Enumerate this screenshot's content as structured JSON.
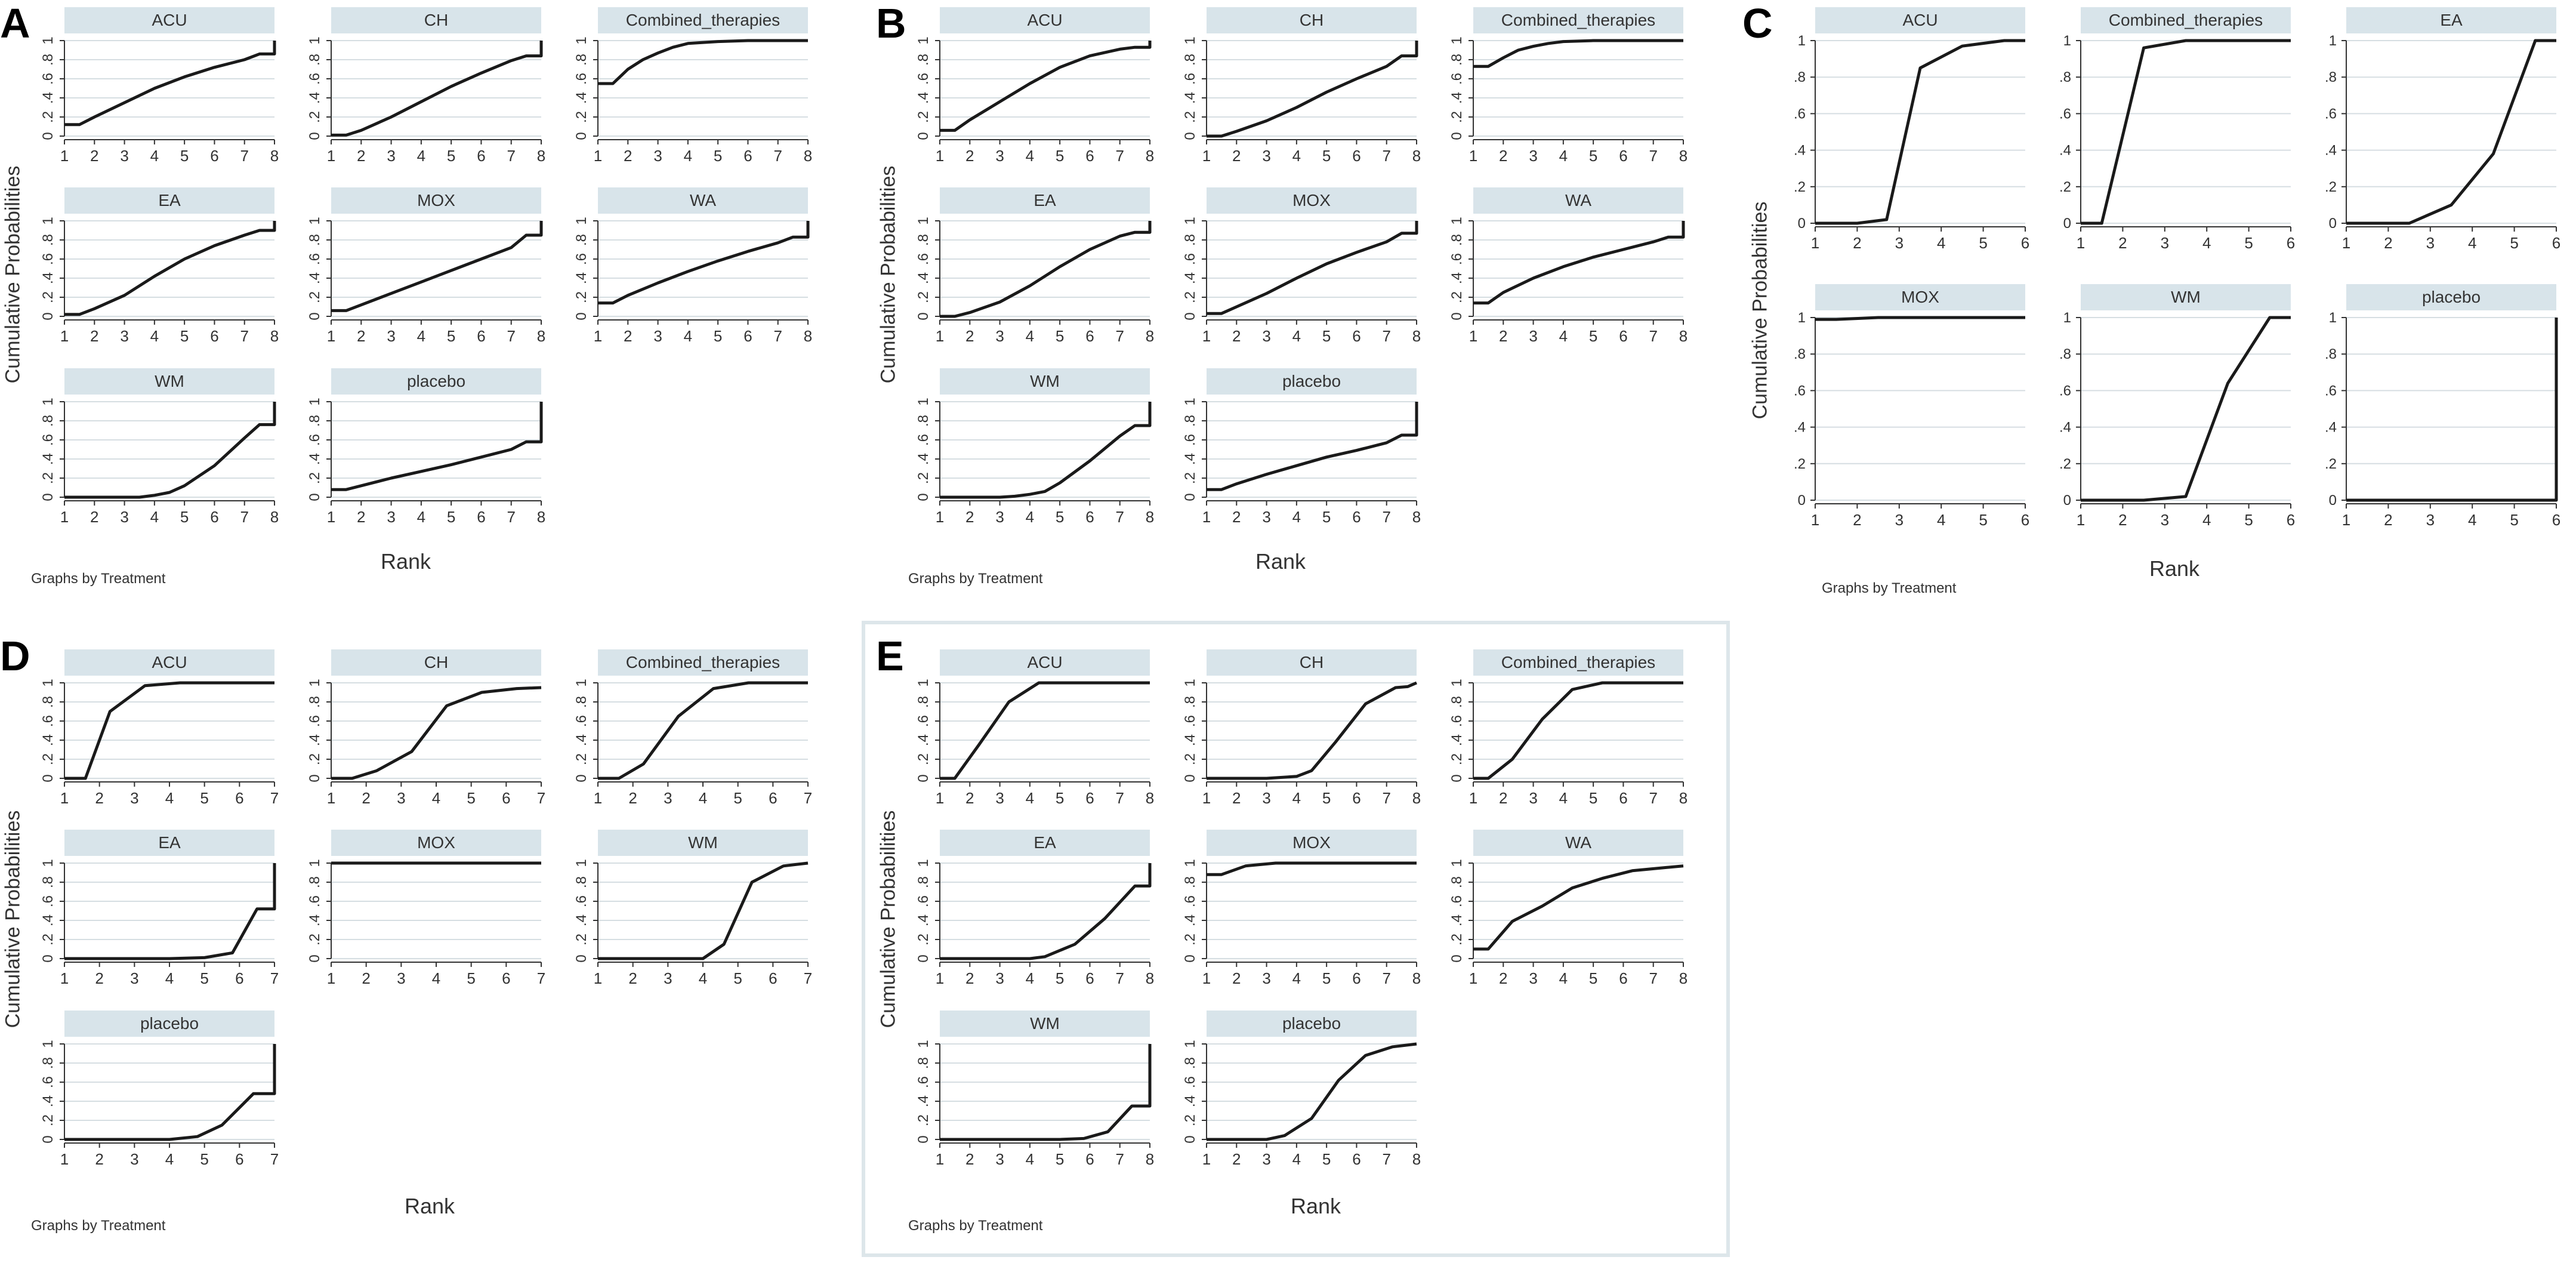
{
  "colors": {
    "strip": "#d8e4ea",
    "grid": "#d6dee2",
    "line": "#1a1a1a",
    "text": "#333333",
    "frame": "#dde6ea"
  },
  "chart_data": [
    {
      "panel": "A",
      "type": "line",
      "ylabel": "Cumulative Probabilities",
      "xlabel": "Rank",
      "note": "Graphs by Treatment",
      "xlim": [
        1,
        8
      ],
      "ylim": [
        0,
        1
      ],
      "xticks": [
        "1",
        "2",
        "3",
        "4",
        "5",
        "6",
        "7",
        "8"
      ],
      "yticks": [
        "0",
        ".2",
        ".4",
        ".6",
        ".8",
        "1"
      ],
      "series": [
        {
          "name": "ACU",
          "x": [
            1,
            1.5,
            2,
            3,
            4,
            5,
            6,
            7,
            7.5,
            8,
            8
          ],
          "y": [
            0.12,
            0.12,
            0.2,
            0.35,
            0.5,
            0.62,
            0.72,
            0.8,
            0.86,
            0.86,
            1
          ]
        },
        {
          "name": "CH",
          "x": [
            1,
            1.5,
            2,
            3,
            4,
            5,
            6,
            7,
            7.5,
            8,
            8
          ],
          "y": [
            0.01,
            0.01,
            0.06,
            0.2,
            0.36,
            0.52,
            0.66,
            0.79,
            0.84,
            0.84,
            1
          ]
        },
        {
          "name": "Combined_therapies",
          "x": [
            1,
            1.5,
            2,
            2.5,
            3,
            3.5,
            4,
            5,
            6,
            7,
            8
          ],
          "y": [
            0.55,
            0.55,
            0.7,
            0.8,
            0.87,
            0.93,
            0.97,
            0.99,
            1,
            1,
            1
          ]
        },
        {
          "name": "EA",
          "x": [
            1,
            1.5,
            2,
            3,
            4,
            5,
            6,
            7,
            7.5,
            8,
            8
          ],
          "y": [
            0.02,
            0.02,
            0.08,
            0.22,
            0.42,
            0.6,
            0.74,
            0.85,
            0.9,
            0.9,
            1
          ]
        },
        {
          "name": "MOX",
          "x": [
            1,
            1.5,
            2,
            3,
            4,
            5,
            6,
            7,
            7.5,
            8,
            8
          ],
          "y": [
            0.06,
            0.06,
            0.12,
            0.24,
            0.36,
            0.48,
            0.6,
            0.72,
            0.85,
            0.85,
            1
          ]
        },
        {
          "name": "WA",
          "x": [
            1,
            1.5,
            2,
            3,
            4,
            5,
            6,
            7,
            7.5,
            8,
            8
          ],
          "y": [
            0.14,
            0.14,
            0.22,
            0.35,
            0.47,
            0.58,
            0.68,
            0.77,
            0.83,
            0.83,
            1
          ]
        },
        {
          "name": "WM",
          "x": [
            1,
            1.5,
            2,
            3,
            3.5,
            4,
            4.5,
            5,
            6,
            7,
            7.5,
            8,
            8
          ],
          "y": [
            0,
            0,
            0,
            0,
            0,
            0.02,
            0.05,
            0.12,
            0.33,
            0.62,
            0.76,
            0.76,
            1
          ]
        },
        {
          "name": "placebo",
          "x": [
            1,
            1.5,
            2,
            3,
            4,
            5,
            6,
            7,
            7.5,
            8,
            8
          ],
          "y": [
            0.08,
            0.08,
            0.12,
            0.2,
            0.27,
            0.34,
            0.42,
            0.5,
            0.58,
            0.58,
            1
          ]
        }
      ]
    },
    {
      "panel": "B",
      "type": "line",
      "ylabel": "Cumulative Probabilities",
      "xlabel": "Rank",
      "note": "Graphs by Treatment",
      "xlim": [
        1,
        8
      ],
      "ylim": [
        0,
        1
      ],
      "xticks": [
        "1",
        "2",
        "3",
        "4",
        "5",
        "6",
        "7",
        "8"
      ],
      "yticks": [
        "0",
        ".2",
        ".4",
        ".6",
        ".8",
        "1"
      ],
      "series": [
        {
          "name": "ACU",
          "x": [
            1,
            1.5,
            2,
            3,
            4,
            5,
            6,
            7,
            7.5,
            8,
            8
          ],
          "y": [
            0.06,
            0.06,
            0.17,
            0.36,
            0.55,
            0.72,
            0.84,
            0.91,
            0.93,
            0.93,
            1
          ]
        },
        {
          "name": "CH",
          "x": [
            1,
            1.5,
            2,
            3,
            4,
            5,
            6,
            7,
            7.5,
            8,
            8
          ],
          "y": [
            0,
            0,
            0.05,
            0.16,
            0.3,
            0.46,
            0.6,
            0.73,
            0.84,
            0.84,
            1
          ]
        },
        {
          "name": "Combined_therapies",
          "x": [
            1,
            1.5,
            2,
            2.5,
            3,
            3.5,
            4,
            5,
            6,
            7,
            8
          ],
          "y": [
            0.73,
            0.73,
            0.82,
            0.9,
            0.94,
            0.97,
            0.99,
            1,
            1,
            1,
            1
          ]
        },
        {
          "name": "EA",
          "x": [
            1,
            1.5,
            2,
            3,
            4,
            5,
            6,
            7,
            7.5,
            8,
            8
          ],
          "y": [
            0,
            0,
            0.04,
            0.15,
            0.32,
            0.52,
            0.7,
            0.84,
            0.88,
            0.88,
            1
          ]
        },
        {
          "name": "MOX",
          "x": [
            1,
            1.5,
            2,
            3,
            4,
            5,
            6,
            7,
            7.5,
            8,
            8
          ],
          "y": [
            0.03,
            0.03,
            0.1,
            0.24,
            0.4,
            0.55,
            0.67,
            0.78,
            0.87,
            0.87,
            1
          ]
        },
        {
          "name": "WA",
          "x": [
            1,
            1.5,
            2,
            3,
            4,
            5,
            6,
            7,
            7.5,
            8,
            8
          ],
          "y": [
            0.14,
            0.14,
            0.25,
            0.4,
            0.52,
            0.62,
            0.7,
            0.78,
            0.83,
            0.83,
            1
          ]
        },
        {
          "name": "WM",
          "x": [
            1,
            1.5,
            2,
            3,
            3.5,
            4,
            4.5,
            5,
            6,
            7,
            7.5,
            8,
            8
          ],
          "y": [
            0,
            0,
            0,
            0,
            0.01,
            0.03,
            0.06,
            0.15,
            0.38,
            0.64,
            0.75,
            0.75,
            1
          ]
        },
        {
          "name": "placebo",
          "x": [
            1,
            1.5,
            2,
            3,
            4,
            5,
            6,
            7,
            7.5,
            8,
            8
          ],
          "y": [
            0.08,
            0.08,
            0.14,
            0.24,
            0.33,
            0.42,
            0.49,
            0.57,
            0.65,
            0.65,
            1
          ]
        }
      ]
    },
    {
      "panel": "C",
      "type": "line",
      "ylabel": "Cumulative Probabilities",
      "xlabel": "Rank",
      "note": "Graphs by Treatment",
      "xlim": [
        1,
        6
      ],
      "ylim": [
        0,
        1
      ],
      "xticks": [
        "1",
        "2",
        "3",
        "4",
        "5",
        "6"
      ],
      "yticks": [
        "0",
        ".2",
        ".4",
        ".6",
        ".8",
        "1"
      ],
      "series": [
        {
          "name": "ACU",
          "x": [
            1,
            1.5,
            2,
            2.7,
            3.5,
            4.5,
            5.5,
            6
          ],
          "y": [
            0,
            0,
            0,
            0.02,
            0.85,
            0.97,
            1,
            1
          ]
        },
        {
          "name": "Combined_therapies",
          "x": [
            1,
            1.5,
            2.5,
            3.5,
            4.5,
            5.5,
            6
          ],
          "y": [
            0,
            0,
            0.96,
            1,
            1,
            1,
            1
          ]
        },
        {
          "name": "EA",
          "x": [
            1,
            1.5,
            2.5,
            3.5,
            4.5,
            5.5,
            6
          ],
          "y": [
            0,
            0,
            0,
            0.1,
            0.38,
            1,
            1
          ]
        },
        {
          "name": "MOX",
          "x": [
            1,
            1.5,
            2.5,
            3.5,
            4.5,
            5.5,
            6
          ],
          "y": [
            0.99,
            0.99,
            1,
            1,
            1,
            1,
            1
          ]
        },
        {
          "name": "WM",
          "x": [
            1,
            1.5,
            2.5,
            3.5,
            4.5,
            5.5,
            6
          ],
          "y": [
            0,
            0,
            0,
            0.02,
            0.64,
            1,
            1
          ]
        },
        {
          "name": "placebo",
          "x": [
            1,
            2,
            3,
            4,
            5,
            6,
            6
          ],
          "y": [
            0,
            0,
            0,
            0,
            0,
            0,
            1
          ]
        }
      ]
    },
    {
      "panel": "D",
      "type": "line",
      "ylabel": "Cumulative Probabilities",
      "xlabel": "Rank",
      "note": "Graphs by Treatment",
      "xlim": [
        1,
        7
      ],
      "ylim": [
        0,
        1
      ],
      "xticks": [
        "1",
        "2",
        "3",
        "4",
        "5",
        "6",
        "7"
      ],
      "yticks": [
        "0",
        ".2",
        ".4",
        ".6",
        ".8",
        "1"
      ],
      "series": [
        {
          "name": "ACU",
          "x": [
            1,
            1.6,
            2.3,
            3.3,
            4.3,
            5.3,
            6.3,
            7
          ],
          "y": [
            0,
            0,
            0.7,
            0.97,
            1,
            1,
            1,
            1
          ]
        },
        {
          "name": "CH",
          "x": [
            1,
            1.6,
            2.3,
            3.3,
            4.3,
            5.3,
            6.3,
            7
          ],
          "y": [
            0,
            0,
            0.08,
            0.28,
            0.76,
            0.9,
            0.94,
            0.95
          ]
        },
        {
          "name": "Combined_therapies",
          "x": [
            1,
            1.6,
            2.3,
            3.3,
            4.3,
            5.3,
            6.3,
            7
          ],
          "y": [
            0,
            0,
            0.15,
            0.65,
            0.94,
            1,
            1,
            1
          ]
        },
        {
          "name": "EA",
          "x": [
            1,
            2,
            3,
            4,
            5,
            5.8,
            6.5,
            7,
            7
          ],
          "y": [
            0,
            0,
            0,
            0,
            0.01,
            0.06,
            0.52,
            0.52,
            1
          ]
        },
        {
          "name": "MOX",
          "x": [
            1,
            2,
            3,
            4,
            5,
            6,
            7
          ],
          "y": [
            1,
            1,
            1,
            1,
            1,
            1,
            1
          ]
        },
        {
          "name": "WM",
          "x": [
            1,
            2,
            3,
            4,
            4.6,
            5.4,
            6.3,
            7
          ],
          "y": [
            0,
            0,
            0,
            0,
            0.15,
            0.8,
            0.97,
            1
          ]
        },
        {
          "name": "placebo",
          "x": [
            1,
            2,
            3,
            4,
            4.8,
            5.5,
            6.4,
            7,
            7
          ],
          "y": [
            0,
            0,
            0,
            0,
            0.03,
            0.15,
            0.48,
            0.48,
            1
          ]
        }
      ]
    },
    {
      "panel": "E",
      "type": "line",
      "ylabel": "Cumulative Probabilities",
      "xlabel": "Rank",
      "note": "Graphs by Treatment",
      "xlim": [
        1,
        8
      ],
      "ylim": [
        0,
        1
      ],
      "xticks": [
        "1",
        "2",
        "3",
        "4",
        "5",
        "6",
        "7",
        "8"
      ],
      "yticks": [
        "0",
        ".2",
        ".4",
        ".6",
        ".8",
        "1"
      ],
      "series": [
        {
          "name": "ACU",
          "x": [
            1,
            1.5,
            2.3,
            3.3,
            4.3,
            5.3,
            6.3,
            7.3,
            8
          ],
          "y": [
            0,
            0,
            0.35,
            0.8,
            1,
            1,
            1,
            1,
            1
          ]
        },
        {
          "name": "CH",
          "x": [
            1,
            2,
            3,
            4,
            4.5,
            5.3,
            6.3,
            7.3,
            7.7,
            8
          ],
          "y": [
            0,
            0,
            0,
            0.02,
            0.08,
            0.38,
            0.78,
            0.95,
            0.96,
            1
          ]
        },
        {
          "name": "Combined_therapies",
          "x": [
            1,
            1.5,
            2.3,
            3.3,
            4.3,
            5.3,
            6.3,
            7.3,
            8
          ],
          "y": [
            0,
            0,
            0.2,
            0.62,
            0.93,
            1,
            1,
            1,
            1
          ]
        },
        {
          "name": "EA",
          "x": [
            1,
            2,
            3,
            4,
            4.5,
            5.5,
            6.5,
            7.5,
            8,
            8
          ],
          "y": [
            0,
            0,
            0,
            0,
            0.02,
            0.15,
            0.42,
            0.76,
            0.76,
            1
          ]
        },
        {
          "name": "MOX",
          "x": [
            1,
            1.5,
            2.3,
            3.3,
            4.3,
            5.3,
            6.3,
            7.3,
            8
          ],
          "y": [
            0.88,
            0.88,
            0.97,
            1,
            1,
            1,
            1,
            1,
            1
          ]
        },
        {
          "name": "WA",
          "x": [
            1,
            1.5,
            2.3,
            3.3,
            4.3,
            5.3,
            6.3,
            7.3,
            8
          ],
          "y": [
            0.1,
            0.1,
            0.39,
            0.55,
            0.74,
            0.84,
            0.92,
            0.95,
            0.97
          ]
        },
        {
          "name": "WM",
          "x": [
            1,
            2,
            3,
            4,
            5,
            5.8,
            6.6,
            7.4,
            8,
            8
          ],
          "y": [
            0,
            0,
            0,
            0,
            0,
            0.01,
            0.08,
            0.35,
            0.35,
            1
          ]
        },
        {
          "name": "placebo",
          "x": [
            1,
            2,
            3,
            3.6,
            4.5,
            5.4,
            6.3,
            7.2,
            8
          ],
          "y": [
            0,
            0,
            0,
            0.04,
            0.22,
            0.62,
            0.88,
            0.97,
            1
          ]
        }
      ]
    }
  ]
}
